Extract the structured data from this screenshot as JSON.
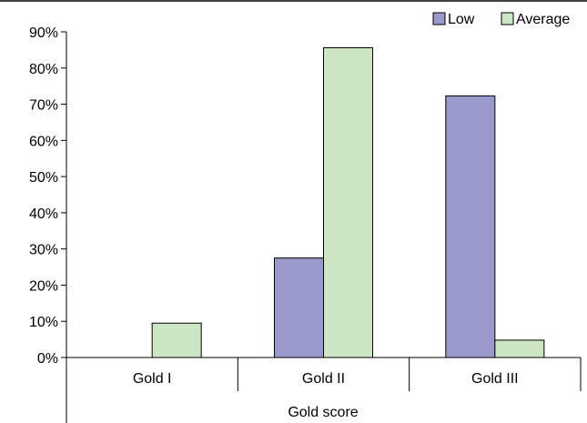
{
  "chart_data": {
    "type": "bar",
    "categories": [
      "Gold I",
      "Gold II",
      "Gold III"
    ],
    "series": [
      {
        "name": "Low",
        "values": [
          0,
          27.5,
          72.3
        ],
        "color": "#9999cc"
      },
      {
        "name": "Average",
        "values": [
          9.5,
          85.6,
          4.8
        ],
        "color": "#cce6c3"
      }
    ],
    "xlabel": "Gold score",
    "ylabel": "",
    "ylim": [
      0,
      90
    ],
    "ytick_step": 10,
    "ytick_suffix": "%",
    "grid": false,
    "legend_position": "top-right"
  }
}
